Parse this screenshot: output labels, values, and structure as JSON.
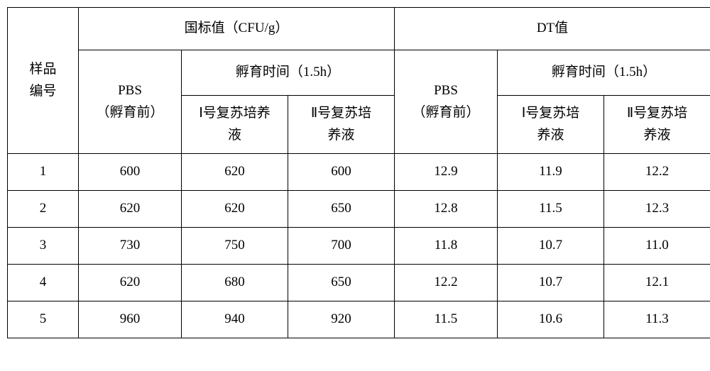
{
  "background_color": "#ffffff",
  "border_color": "#000000",
  "font_family": "SimSun",
  "font_size_pt": 14,
  "columns": {
    "id_header_l1": "样品",
    "id_header_l2": "编号",
    "group_a": "国标值（CFU/g）",
    "group_b": "DT值",
    "pbs_l1": "PBS",
    "pbs_l2": "（孵育前）",
    "incub": "孵育时间（1.5h）",
    "sub1_l1": "Ⅰ号复苏培养",
    "sub1_l2": "液",
    "sub2_l1": "Ⅱ号复苏培",
    "sub2_l2": "养液",
    "sub1b_l1": "Ⅰ号复苏培",
    "sub1b_l2": "养液",
    "sub2b_l1": "Ⅱ号复苏培",
    "sub2b_l2": "养液"
  },
  "rows": [
    {
      "id": "1",
      "a_pbs": "600",
      "a_s1": "620",
      "a_s2": "600",
      "b_pbs": "12.9",
      "b_s1": "11.9",
      "b_s2": "12.2"
    },
    {
      "id": "2",
      "a_pbs": "620",
      "a_s1": "620",
      "a_s2": "650",
      "b_pbs": "12.8",
      "b_s1": "11.5",
      "b_s2": "12.3"
    },
    {
      "id": "3",
      "a_pbs": "730",
      "a_s1": "750",
      "a_s2": "700",
      "b_pbs": "11.8",
      "b_s1": "10.7",
      "b_s2": "11.0"
    },
    {
      "id": "4",
      "a_pbs": "620",
      "a_s1": "680",
      "a_s2": "650",
      "b_pbs": "12.2",
      "b_s1": "10.7",
      "b_s2": "12.1"
    },
    {
      "id": "5",
      "a_pbs": "960",
      "a_s1": "940",
      "a_s2": "920",
      "b_pbs": "11.5",
      "b_s1": "10.6",
      "b_s2": "11.3"
    }
  ]
}
